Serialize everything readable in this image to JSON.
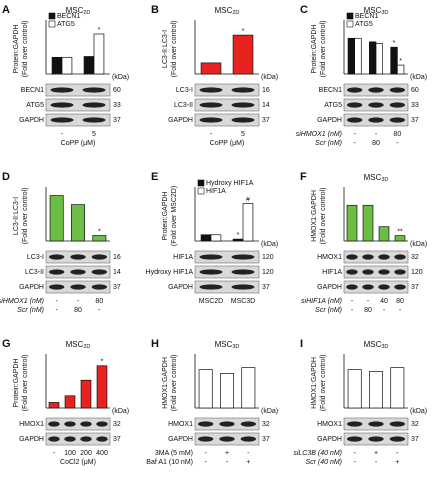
{
  "chart_data": [
    {
      "type": "bar",
      "panel": "A",
      "title": [
        "MSC",
        "2D"
      ],
      "y_label": [
        "Protein:GAPDH",
        "(Fold over control)"
      ],
      "ylim": [
        0,
        3
      ],
      "series": [
        {
          "name": "BECN1",
          "color": "#111111",
          "values": [
            1,
            1.05
          ],
          "annotations": [
            null,
            null
          ]
        },
        {
          "name": "ATG5",
          "color": "#ffffff",
          "values": [
            1,
            2.4
          ],
          "annotations": [
            null,
            "*"
          ]
        }
      ],
      "kda_header": "(kDa)",
      "blots": [
        {
          "label": "BECN1",
          "kda": 60
        },
        {
          "label": "ATG5",
          "kda": 33
        },
        {
          "label": "GAPDH",
          "kda": 37
        }
      ],
      "categories": [
        "-",
        "5"
      ],
      "xlabel": "CoPP (μM)"
    },
    {
      "type": "bar",
      "panel": "B",
      "title": [
        "MSC",
        "2D"
      ],
      "y_label": [
        "LC3-II:LC3-I",
        "(Fold over control)"
      ],
      "ylim": [
        0,
        4.5
      ],
      "series": [
        {
          "color": "#e8231f",
          "values": [
            1,
            3.5
          ],
          "annotations": [
            null,
            "*"
          ]
        }
      ],
      "kda_header": "(kDa)",
      "blots": [
        {
          "label": "LC3-I",
          "kda": 16
        },
        {
          "label": "LC3-II",
          "kda": 14
        },
        {
          "label": "GAPDH",
          "kda": 37
        }
      ],
      "categories": [
        "-",
        "5"
      ],
      "xlabel": "CoPP (μM)"
    },
    {
      "type": "bar",
      "panel": "C",
      "title": [
        "MSC",
        "3D"
      ],
      "y_label": [
        "Protein:GAPDH",
        "(Fold over control)"
      ],
      "ylim": [
        0,
        1.4
      ],
      "series": [
        {
          "name": "BECN1",
          "color": "#111111",
          "values": [
            1,
            0.9,
            0.75
          ],
          "annotations": [
            null,
            null,
            "*"
          ]
        },
        {
          "name": "ATG5",
          "color": "#ffffff",
          "values": [
            1,
            0.85,
            0.25
          ],
          "annotations": [
            null,
            null,
            "*"
          ]
        }
      ],
      "kda_header": "(kDa)",
      "blots": [
        {
          "label": "BECN1",
          "kda": 60
        },
        {
          "label": "ATG5",
          "kda": 33
        },
        {
          "label": "GAPDH",
          "kda": 37
        }
      ],
      "treatments": [
        {
          "label": "siHMOX1 (nM)",
          "values": [
            "-",
            "-",
            "80"
          ]
        },
        {
          "label": "Scr (nM)",
          "values": [
            "-",
            "80",
            "-"
          ]
        }
      ]
    },
    {
      "type": "bar",
      "panel": "D",
      "y_label": [
        "LC3-II:LC3-I",
        "(Fold over control)"
      ],
      "ylim": [
        0,
        1.1
      ],
      "series": [
        {
          "color": "#6dbe45",
          "values": [
            1,
            0.8,
            0.12
          ],
          "annotations": [
            null,
            null,
            "*"
          ]
        }
      ],
      "blots": [
        {
          "label": "LC3-I",
          "kda": 16
        },
        {
          "label": "LC3-II",
          "kda": 14
        },
        {
          "label": "GAPDH",
          "kda": 37
        }
      ],
      "treatments": [
        {
          "label": "siHMOX1 (nM)",
          "values": [
            "-",
            "-",
            "80"
          ]
        },
        {
          "label": "Scr (nM)",
          "values": [
            "-",
            "80",
            "-"
          ]
        }
      ]
    },
    {
      "type": "bar",
      "panel": "E",
      "y_label": [
        "Protein:GAPDH",
        "(Fold over MSC2D)"
      ],
      "ylim": [
        0,
        8
      ],
      "series": [
        {
          "name": "Hydroxy HIF1A",
          "color": "#111111",
          "values": [
            1,
            0.3
          ],
          "annotations": [
            null,
            "*"
          ]
        },
        {
          "name": "HIF1A",
          "color": "#ffffff",
          "values": [
            1,
            6
          ],
          "annotations": [
            null,
            "#"
          ]
        }
      ],
      "kda_header": "(kDa)",
      "blots": [
        {
          "label": "HIF1A",
          "kda": 120
        },
        {
          "label": "Hydroxy HIF1A",
          "kda": 120
        },
        {
          "label": "GAPDH",
          "kda": 37
        }
      ],
      "categories": [
        "MSC2D",
        "MSC3D"
      ]
    },
    {
      "type": "bar",
      "panel": "F",
      "title": [
        "MSC",
        "3D"
      ],
      "y_label": [
        "HMOX1:GAPDH",
        "(Fold over control)"
      ],
      "ylim": [
        0,
        1.4
      ],
      "series": [
        {
          "color": "#6dbe45",
          "values": [
            1,
            1,
            0.4,
            0.15
          ],
          "annotations": [
            null,
            null,
            null,
            "**"
          ]
        }
      ],
      "kda_header": "(kDa)",
      "blots": [
        {
          "label": "HMOX1",
          "kda": 32
        },
        {
          "label": "HIF1A",
          "kda": 120
        },
        {
          "label": "GAPDH",
          "kda": 37
        }
      ],
      "treatments": [
        {
          "label": "siHIF1A (nM)",
          "values": [
            "-",
            "-",
            "40",
            "80"
          ]
        },
        {
          "label": "Scr (nM)",
          "values": [
            "-",
            "80",
            "-",
            "-"
          ]
        }
      ]
    },
    {
      "type": "bar",
      "panel": "G",
      "title": [
        "MSC",
        "2D"
      ],
      "y_label": [
        "Protein:GAPDH",
        "(Fold over control)"
      ],
      "ylim": [
        0,
        9
      ],
      "series": [
        {
          "color": "#e8231f",
          "values": [
            1,
            2.2,
            5,
            7.6
          ],
          "annotations": [
            null,
            null,
            null,
            "*"
          ]
        }
      ],
      "kda_header": "(kDa)",
      "blots": [
        {
          "label": "HMOX1",
          "kda": 32
        },
        {
          "label": "GAPDH",
          "kda": 37
        }
      ],
      "categories": [
        "-",
        "100",
        "200",
        "400"
      ],
      "xlabel": "CoCl2 (μM)"
    },
    {
      "type": "bar",
      "panel": "H",
      "title": [
        "MSC",
        "3D"
      ],
      "y_label": [
        "HMOX1:GAPDH",
        "(Fold over control)"
      ],
      "ylim": [
        0,
        1.3
      ],
      "series": [
        {
          "color": "#ffffff",
          "values": [
            1,
            0.9,
            1.05
          ],
          "annotations": [
            null,
            null,
            null
          ]
        }
      ],
      "kda_header": "(kDa)",
      "blots": [
        {
          "label": "HMOX1",
          "kda": 32
        },
        {
          "label": "GAPDH",
          "kda": 37
        }
      ],
      "treatments": [
        {
          "label": "3MA (5 mM)",
          "values": [
            "-",
            "+",
            "-"
          ]
        },
        {
          "label": "Baf A1 (10 nM)",
          "values": [
            "-",
            "-",
            "+"
          ]
        }
      ]
    },
    {
      "type": "bar",
      "panel": "I",
      "title": [
        "MSC",
        "3D"
      ],
      "y_label": [
        "HMOX1:GAPDH",
        "(Fold over control)"
      ],
      "ylim": [
        0,
        1.3
      ],
      "series": [
        {
          "color": "#ffffff",
          "values": [
            1,
            0.95,
            1.05
          ],
          "annotations": [
            null,
            null,
            null
          ]
        }
      ],
      "kda_header": "(kDa)",
      "blots": [
        {
          "label": "HMOX1",
          "kda": 32
        },
        {
          "label": "GAPDH",
          "kda": 37
        }
      ],
      "treatments": [
        {
          "label": "siLC3B (40 nM)",
          "values": [
            "-",
            "+",
            "-"
          ]
        },
        {
          "label": "Scr (40 nM)",
          "values": [
            "-",
            "-",
            "+"
          ]
        }
      ]
    }
  ]
}
